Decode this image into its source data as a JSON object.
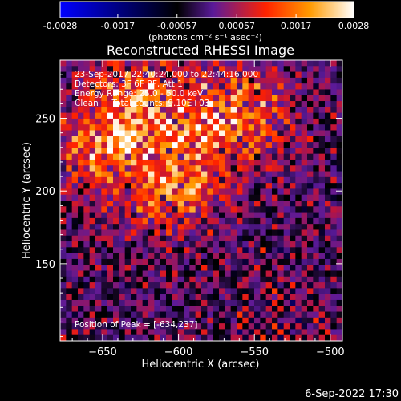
{
  "chart_data": {
    "type": "heatmap",
    "title": "Reconstructed RHESSI Image",
    "xlabel": "Heliocentric X (arcsec)",
    "ylabel": "Heliocentric Y (arcsec)",
    "xlim": [
      -678,
      -492
    ],
    "ylim": [
      97,
      290
    ],
    "x_ticks": [
      -650,
      -600,
      -550,
      -500
    ],
    "y_ticks": [
      150,
      200,
      250
    ],
    "colorbar": {
      "min": -0.0028,
      "max": 0.0028,
      "tick_values": [
        -0.0028,
        -0.0017,
        -0.00057,
        0.00057,
        0.0017,
        0.0028
      ],
      "tick_labels": [
        "-0.0028",
        "-0.0017",
        "-0.00057",
        "0.00057",
        "0.0017",
        "0.0028"
      ],
      "unit_text": "(photons cm⁻² s⁻¹ asec⁻²)",
      "colors": [
        "#0000ff",
        "#000000",
        "#5a1a9a",
        "#ff2200",
        "#ff9a00",
        "#ffffff"
      ]
    },
    "annotations": [
      "23-Sep-2017 22:40:24.000 to 22:44:16.000",
      "Detectors: 3F 6F 8F, Att 1",
      "Energy Range: 25.0 - 50.0 keV",
      "Clean     Total counts: 9.10E+03"
    ],
    "peak_label": "Position of Peak = [-634,237]",
    "peak": [
      -634,
      237
    ],
    "grid_cells": 48,
    "grid": false
  },
  "footer": {
    "date": "6-Sep-2022 17:30"
  }
}
